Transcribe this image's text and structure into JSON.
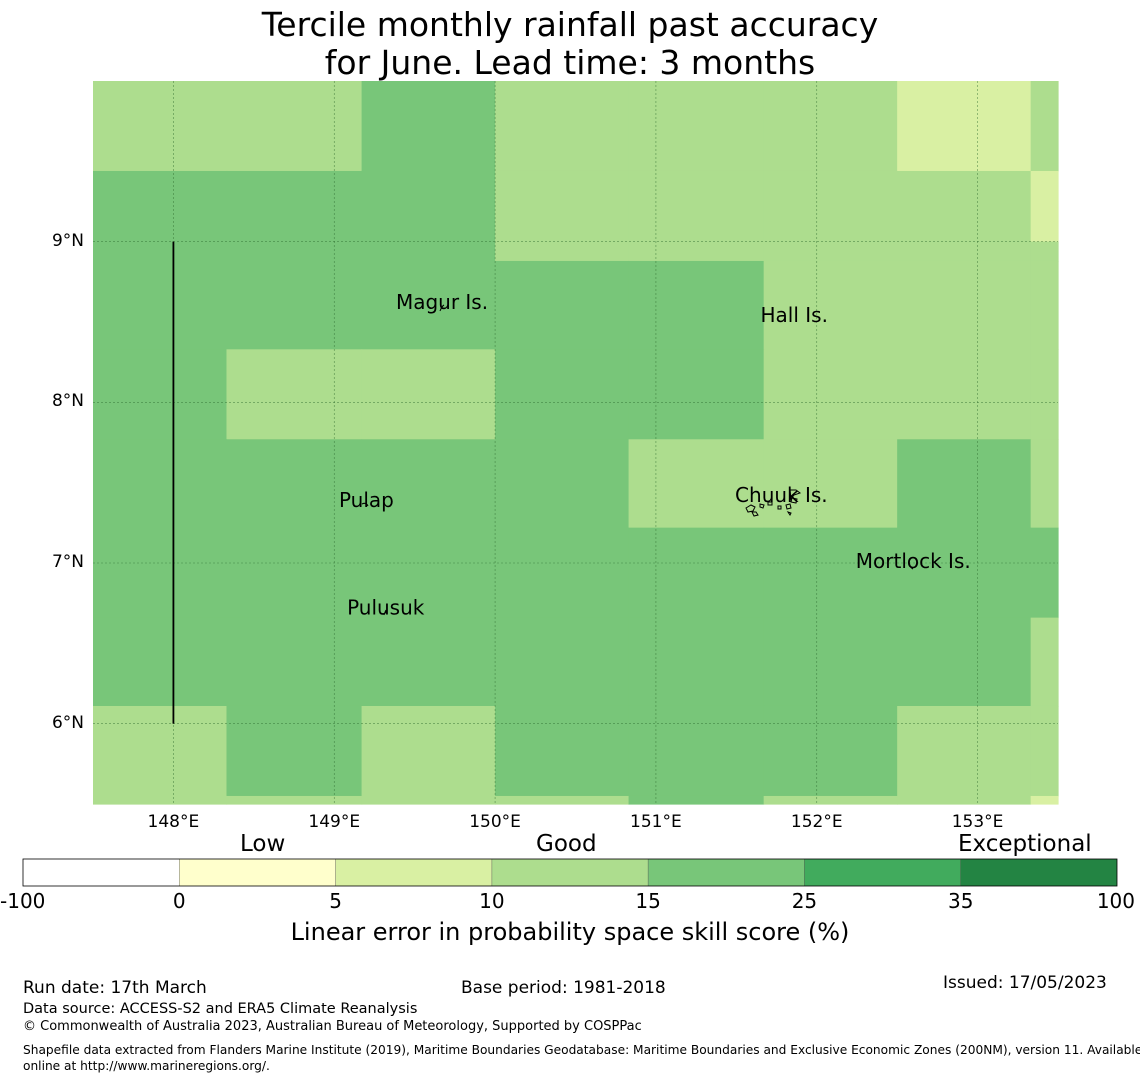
{
  "title_line1": "Tercile monthly rainfall past accuracy",
  "title_line2": "for June. Lead time: 3 months",
  "colors": {
    "bin_neg100_0": "#ffffff",
    "bin_0_5": "#ffffcc",
    "bin_5_10": "#d9f0a3",
    "bin_10_15": "#addd8e",
    "bin_15_25": "#78c679",
    "bin_25_35": "#41ab5d",
    "bin_35_100": "#238443"
  },
  "map": {
    "lon_range": [
      147.5,
      153.5
    ],
    "lat_range": [
      5.5,
      10.0
    ],
    "x_ticks": [
      {
        "value": 148,
        "label": "148°E"
      },
      {
        "value": 149,
        "label": "149°E"
      },
      {
        "value": 150,
        "label": "150°E"
      },
      {
        "value": 151,
        "label": "151°E"
      },
      {
        "value": 152,
        "label": "152°E"
      },
      {
        "value": 153,
        "label": "153°E"
      }
    ],
    "y_ticks": [
      {
        "value": 9,
        "label": "9°N"
      },
      {
        "value": 8,
        "label": "8°N"
      },
      {
        "value": 7,
        "label": "7°N"
      },
      {
        "value": 6,
        "label": "6°N"
      }
    ],
    "skill_grid": {
      "lon_edges": [
        147.5,
        148.33,
        149.17,
        150.0,
        150.83,
        151.67,
        152.5,
        153.33,
        153.5
      ],
      "lat_edges_top_down": [
        10.0,
        9.44,
        9.0,
        8.88,
        8.33,
        7.77,
        7.22,
        6.66,
        6.11,
        5.55,
        5.5
      ],
      "class_rows_top_down": [
        [
          3,
          3,
          4,
          3,
          3,
          3,
          2,
          3
        ],
        [
          4,
          4,
          4,
          3,
          3,
          3,
          3,
          2
        ],
        [
          4,
          4,
          4,
          3,
          3,
          3,
          3,
          3
        ],
        [
          4,
          4,
          4,
          4,
          4,
          3,
          3,
          3
        ],
        [
          4,
          3,
          3,
          4,
          4,
          3,
          3,
          3
        ],
        [
          4,
          4,
          4,
          4,
          3,
          3,
          4,
          3
        ],
        [
          4,
          4,
          4,
          4,
          4,
          4,
          4,
          4
        ],
        [
          4,
          4,
          4,
          4,
          4,
          4,
          4,
          3
        ],
        [
          3,
          4,
          3,
          4,
          4,
          4,
          3,
          3
        ],
        [
          3,
          3,
          3,
          3,
          4,
          3,
          3,
          2
        ]
      ]
    },
    "boundary_line": {
      "lon": 148.0,
      "lat_from": 9.0,
      "lat_to": 6.0
    },
    "places": [
      {
        "name": "Magur Is.",
        "lon": 149.67,
        "lat": 8.58
      },
      {
        "name": "Hall Is.",
        "lon": 151.86,
        "lat": 8.5
      },
      {
        "name": "Pulap",
        "lon": 149.2,
        "lat": 7.35
      },
      {
        "name": "Chuuk Is.",
        "lon": 151.78,
        "lat": 7.38
      },
      {
        "name": "Mortlock Is.",
        "lon": 152.6,
        "lat": 6.97
      },
      {
        "name": "Pulusuk",
        "lon": 149.32,
        "lat": 6.68
      }
    ]
  },
  "colorbar": {
    "section_labels": [
      "Low",
      "Good",
      "Exceptional"
    ],
    "ticks": [
      "-100",
      "0",
      "5",
      "10",
      "15",
      "25",
      "35",
      "100"
    ],
    "title": "Linear error in probability space skill score (%)"
  },
  "footer": {
    "run_date": "Run date: 17th March",
    "base_period": "Base period: 1981-2018",
    "issued": "Issued: 17/05/2023",
    "data_source": "Data source: ACCESS-S2 and ERA5 Climate Reanalysis",
    "copyright": "© Commonwealth of Australia 2023, Australian Bureau of Meteorology, Supported by COSPPac",
    "shapefile_line1": "Shapefile data extracted from Flanders Marine Institute (2019), Maritime Boundaries Geodatabase: Maritime Boundaries and Exclusive Economic Zones (200NM), version 11. Available",
    "shapefile_line2": "online at http://www.marineregions.org/."
  }
}
